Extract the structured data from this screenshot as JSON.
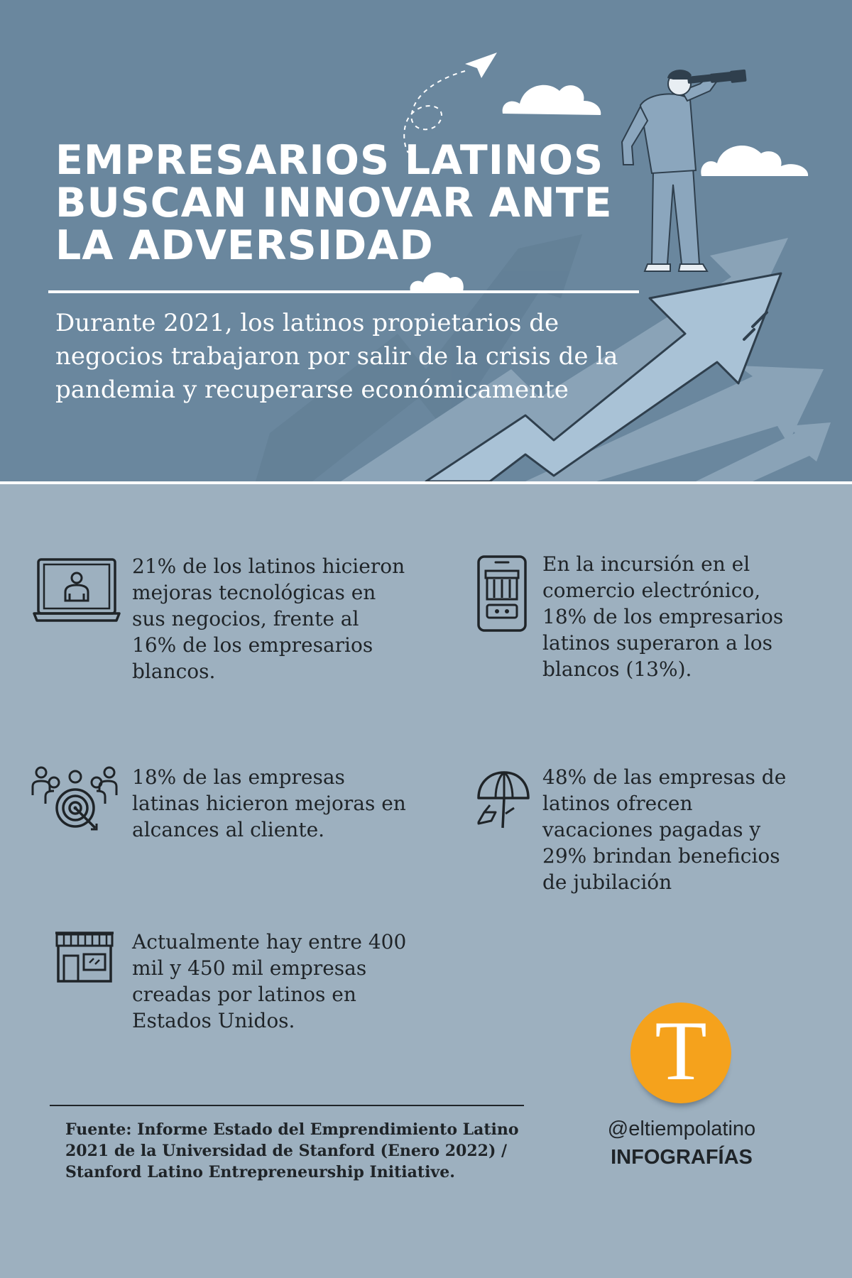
{
  "header": {
    "title": "EMPRESARIOS LATINOS BUSCAN INNOVAR ANTE LA ADVERSIDAD",
    "subtitle": "Durante 2021, los latinos propietarios de negocios trabajaron por salir de la crisis de la pandemia y recuperarse económicamente"
  },
  "facts": [
    {
      "icon": "laptop-user-icon",
      "text": "21% de los latinos hicieron mejoras tecnológicas en sus negocios, frente al 16% de los empresarios blancos."
    },
    {
      "icon": "mobile-shop-icon",
      "text": "En la incursión en el comercio electrónico, 18% de los empresarios latinos superaron a los blancos (13%)."
    },
    {
      "icon": "team-target-icon",
      "text": "18% de las empresas latinas hicieron mejoras en alcances al cliente."
    },
    {
      "icon": "beach-umbrella-icon",
      "text": "48% de las empresas de latinos ofrecen vacaciones pagadas y 29% brindan beneficios de jubilación"
    },
    {
      "icon": "storefront-icon",
      "text": "Actualmente hay entre 400 mil y 450 mil empresas creadas por latinos en Estados Unidos."
    }
  ],
  "footer": {
    "source": "Fuente: Informe Estado del Emprendimiento Latino 2021 de la Universidad de Stanford (Enero 2022) / Stanford Latino Entrepreneurship Initiative.",
    "logo_letter": "T",
    "handle": "@eltiempolatino",
    "section": "INFOGRAFÍAS"
  },
  "colors": {
    "header_bg": "#6a879e",
    "body_bg": "#9db0bf",
    "logo": "#f5a21c",
    "text": "#1f2428"
  }
}
